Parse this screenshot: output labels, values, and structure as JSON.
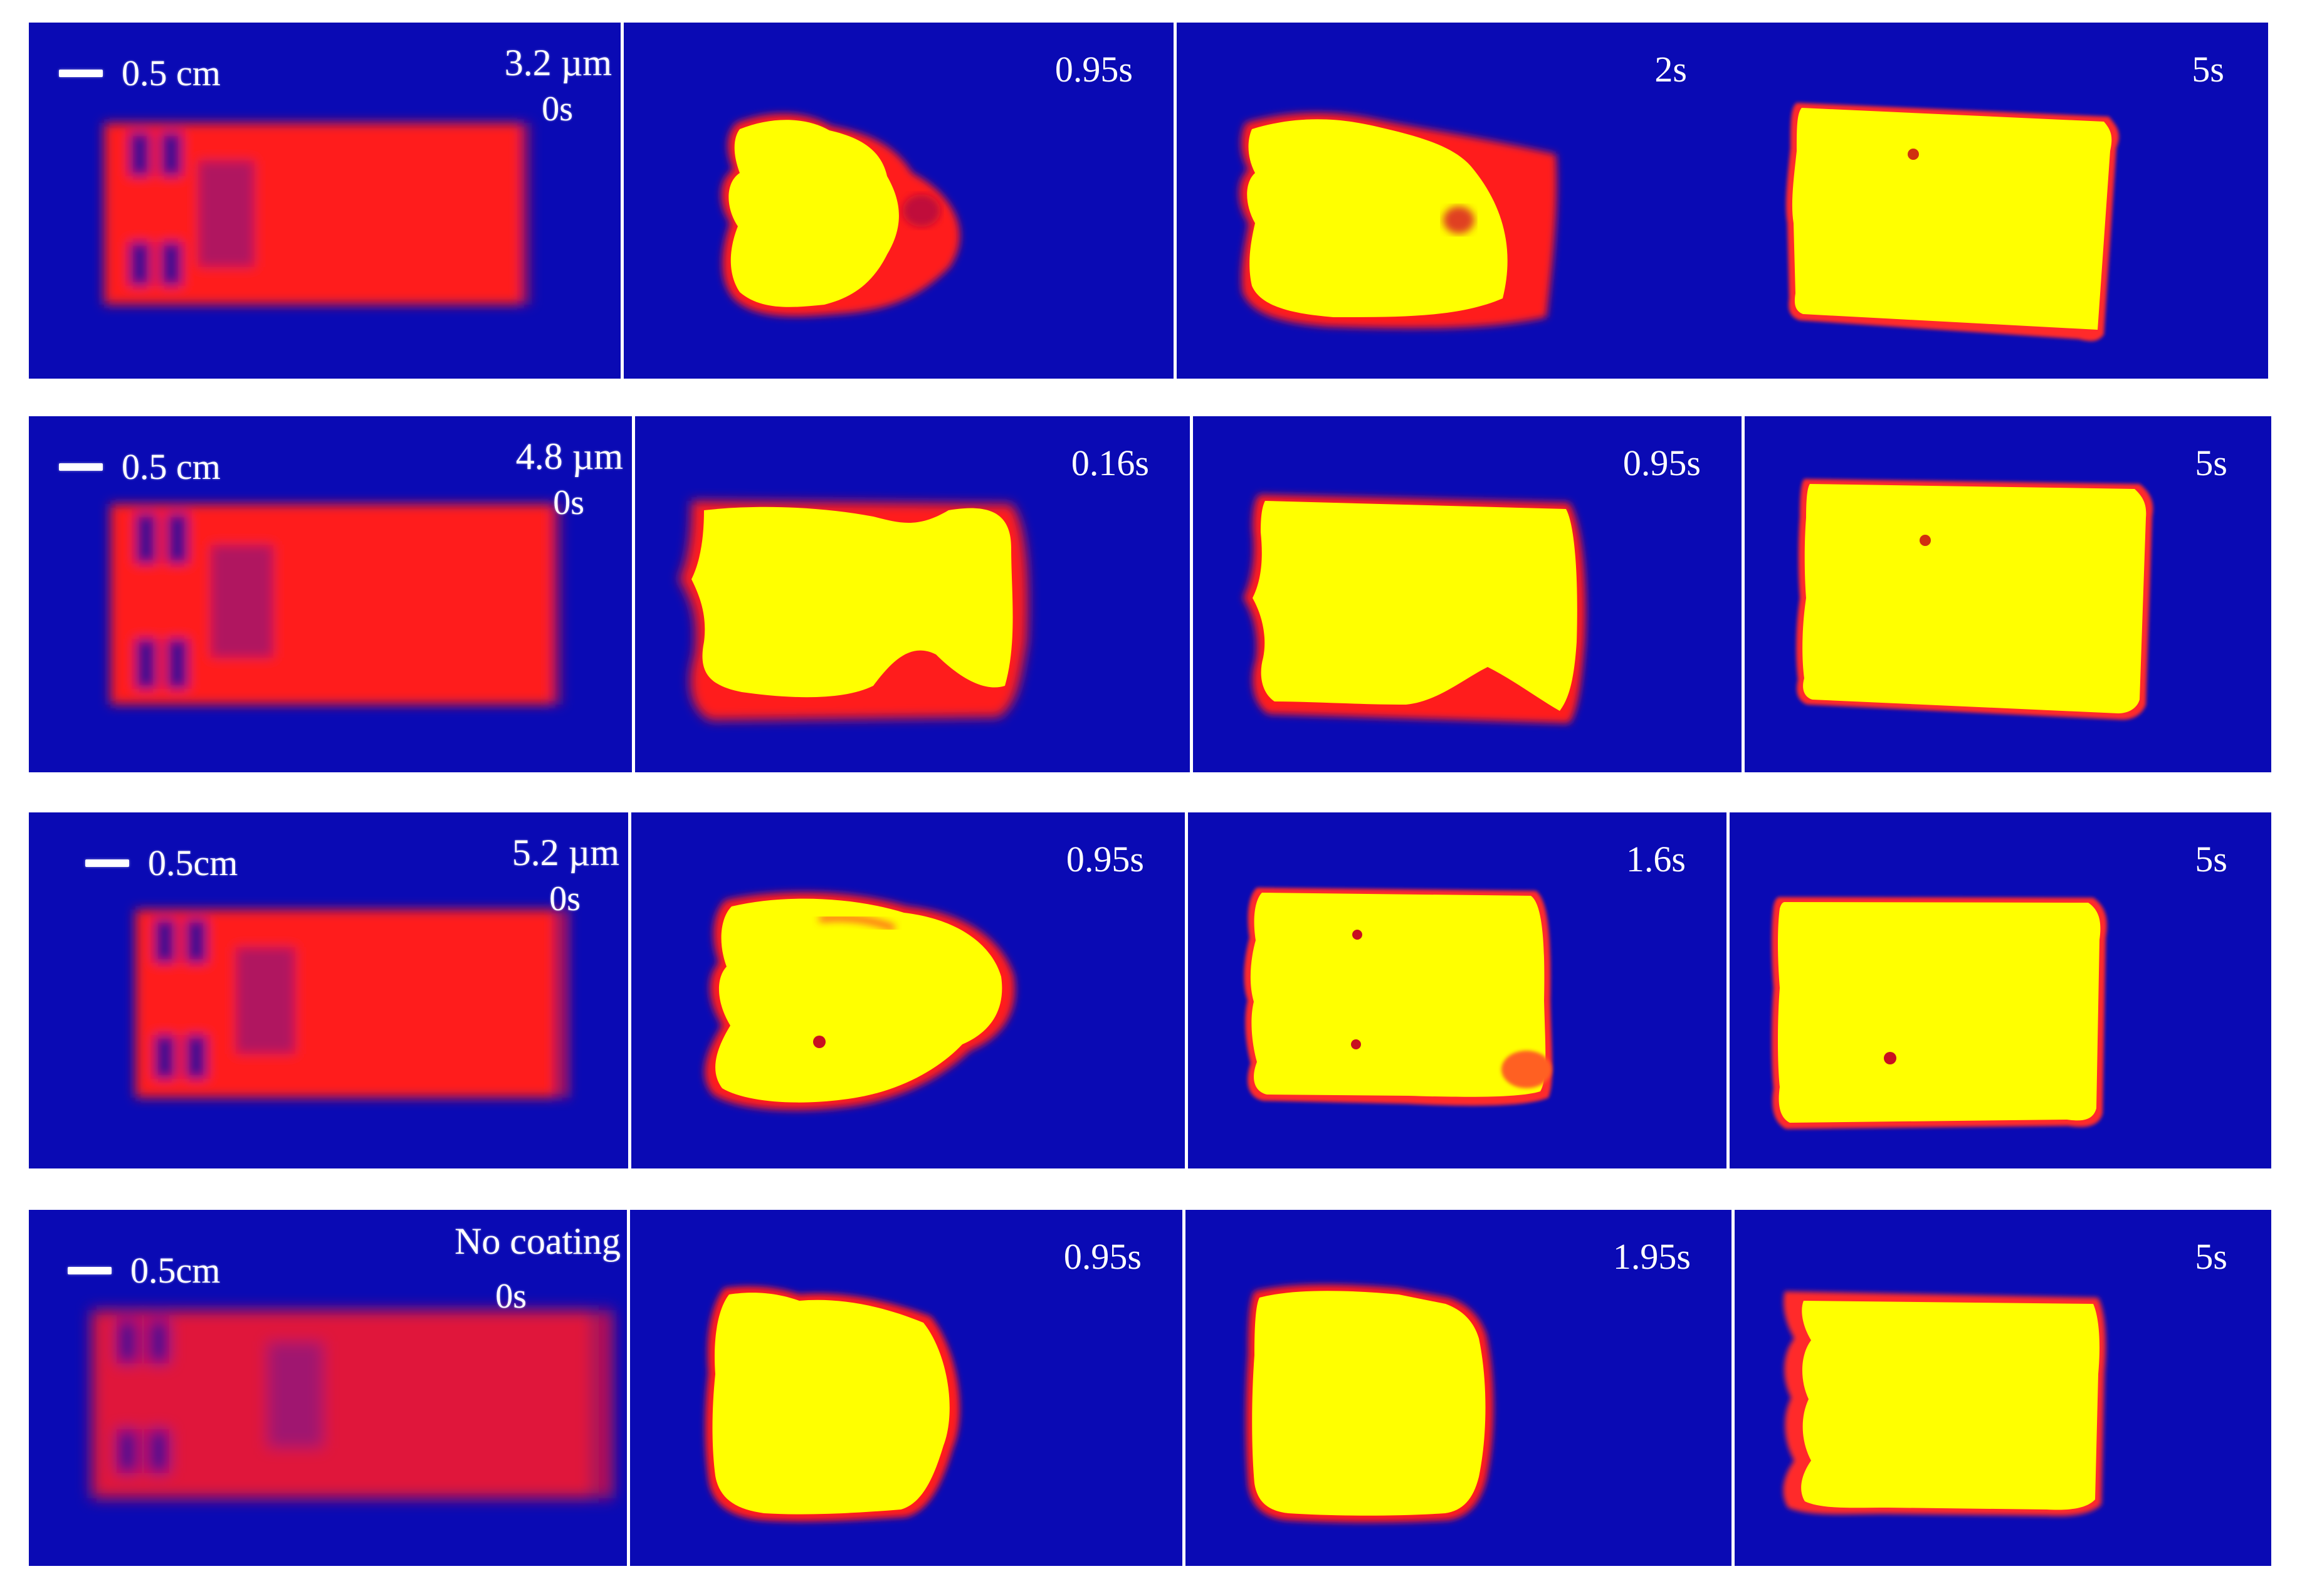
{
  "colors": {
    "background": "#0a0ab4",
    "cold_sample": "#ff1a1a",
    "hot_front": "#ffff00",
    "hot_edge": "#ff2020",
    "label_text": "#ffffff"
  },
  "rows": [
    {
      "scale_label": "0.5 cm",
      "thickness_label": "3.2 µm",
      "initial_time": "0s",
      "frames": [
        {
          "time": "0.95s",
          "blob": "blob-1-2"
        },
        {
          "time": "2s",
          "blob": "blob-1-3"
        },
        {
          "time": "5s",
          "blob": "blob-1-4"
        }
      ]
    },
    {
      "scale_label": "0.5 cm",
      "thickness_label": "4.8 µm",
      "initial_time": "0s",
      "frames": [
        {
          "time": "0.16s",
          "blob": "blob-2-2"
        },
        {
          "time": "0.95s",
          "blob": "blob-2-3"
        },
        {
          "time": "5s",
          "blob": "blob-2-4"
        }
      ]
    },
    {
      "scale_label": "0.5cm",
      "thickness_label": "5.2 µm",
      "initial_time": "0s",
      "frames": [
        {
          "time": "0.95s",
          "blob": "blob-3-2"
        },
        {
          "time": "1.6s",
          "blob": "blob-3-3"
        },
        {
          "time": "5s",
          "blob": "blob-3-4"
        }
      ]
    },
    {
      "scale_label": "0.5cm",
      "thickness_label": "No coating",
      "initial_time": "0s",
      "frames": [
        {
          "time": "0.95s",
          "blob": "blob-4-2"
        },
        {
          "time": "1.95s",
          "blob": "blob-4-3"
        },
        {
          "time": "5s",
          "blob": "blob-4-4"
        }
      ]
    }
  ]
}
